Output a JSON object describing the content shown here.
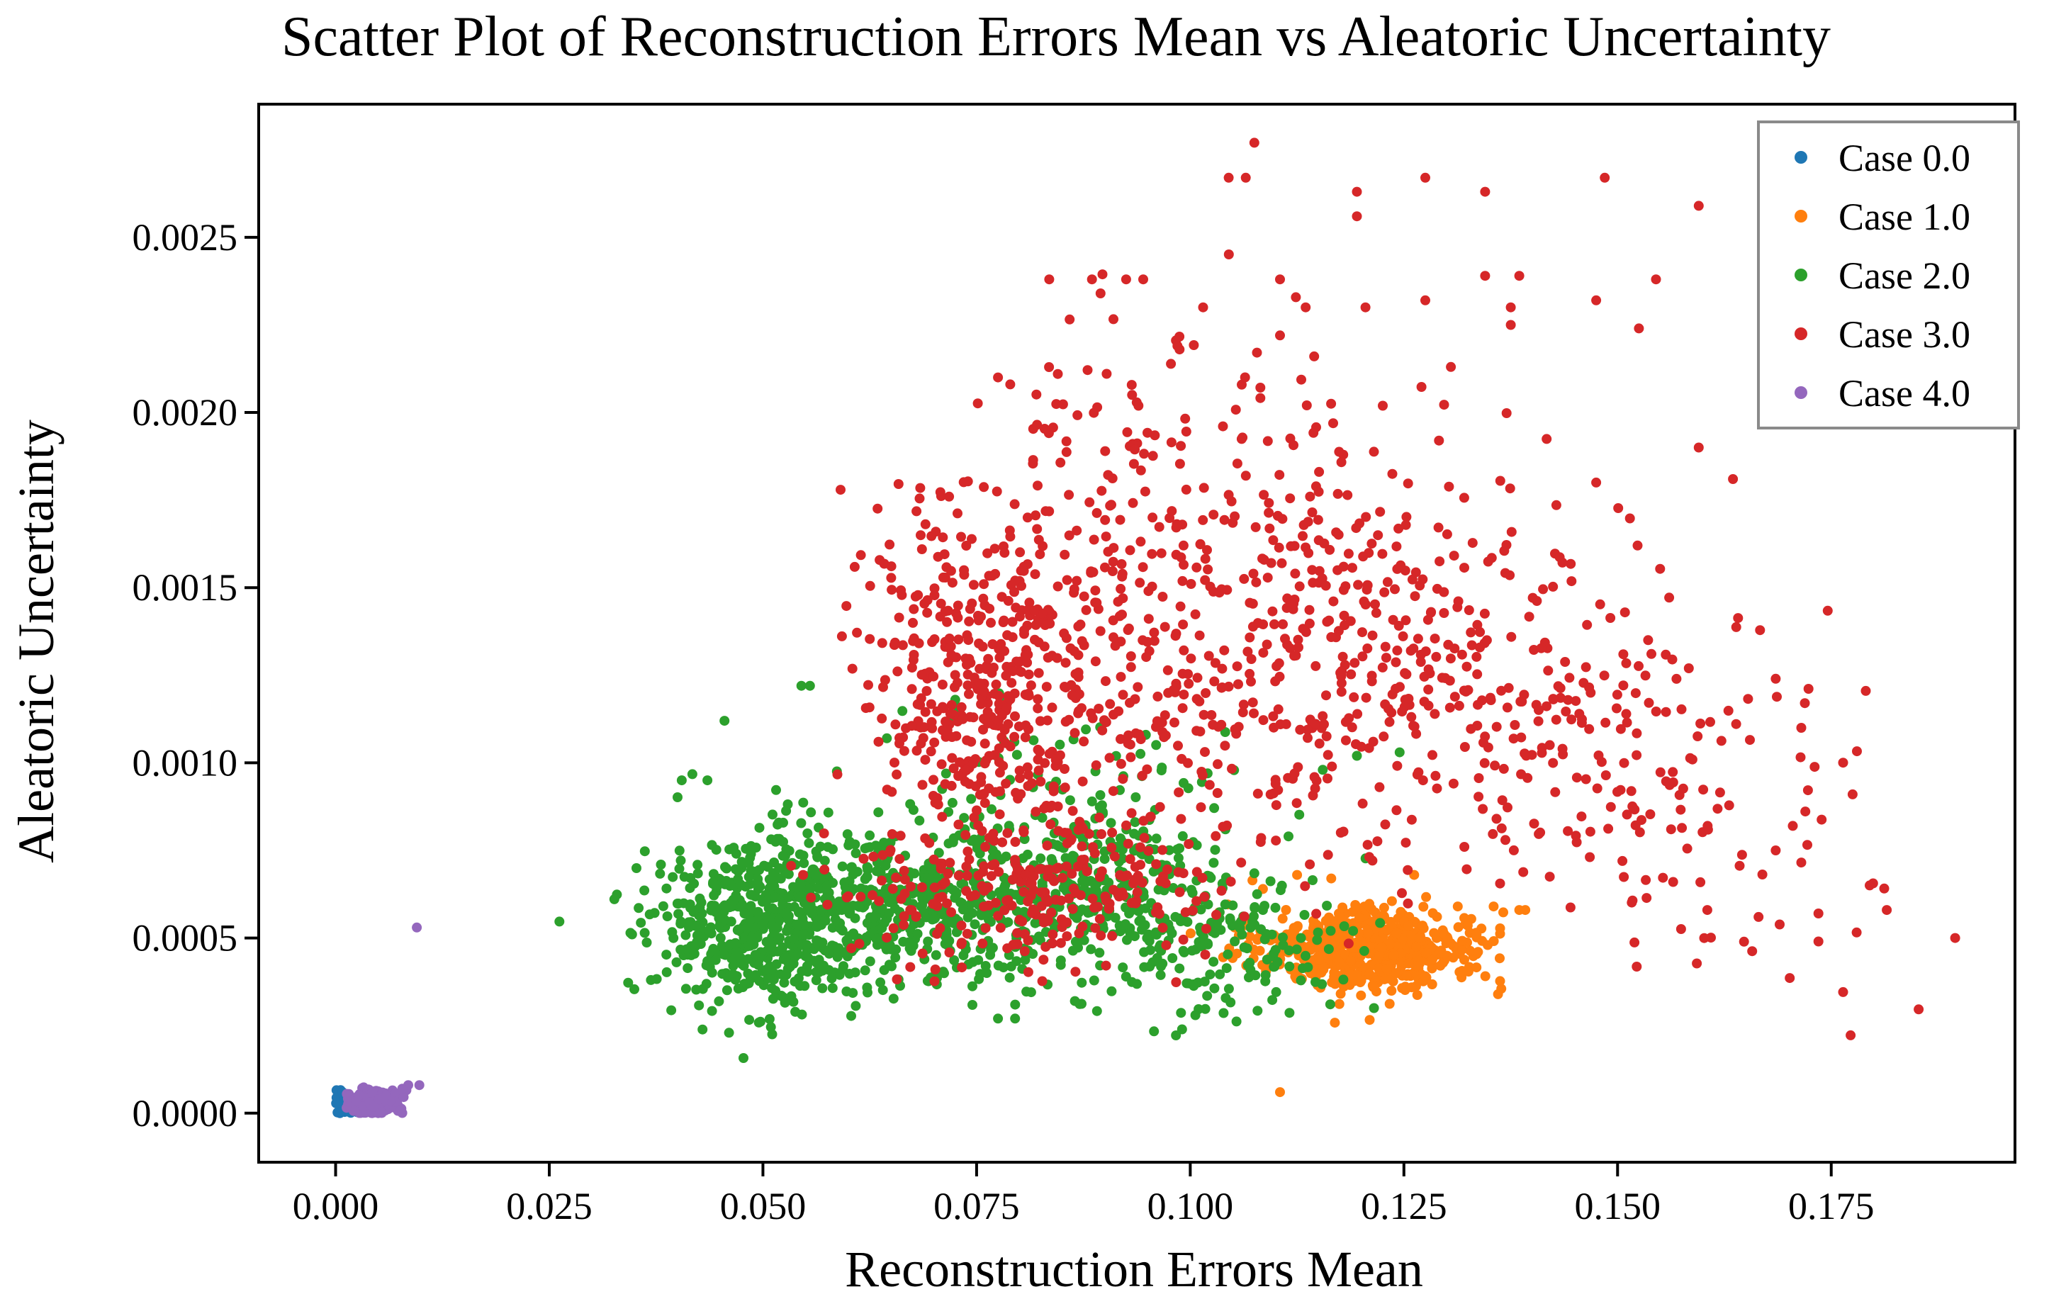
{
  "chart_data": {
    "type": "scatter",
    "title": "Scatter Plot of Reconstruction Errors Mean vs Aleatoric Uncertainty",
    "xlabel": "Reconstruction Errors Mean",
    "ylabel": "Aleatoric Uncertainty",
    "xlim": [
      -0.009,
      0.1965
    ],
    "ylim": [
      -0.00014,
      0.00288
    ],
    "xticks": [
      0.0,
      0.025,
      0.05,
      0.075,
      0.1,
      0.125,
      0.15,
      0.175
    ],
    "xtick_labels": [
      "0.000",
      "0.025",
      "0.050",
      "0.075",
      "0.100",
      "0.125",
      "0.150",
      "0.175"
    ],
    "yticks": [
      0.0,
      0.0005,
      0.001,
      0.0015,
      0.002,
      0.0025
    ],
    "ytick_labels": [
      "0.0000",
      "0.0005",
      "0.0010",
      "0.0015",
      "0.0020",
      "0.0025"
    ],
    "grid": false,
    "legend_position": "top-right",
    "series": [
      {
        "name": "Case 0.0",
        "color": "#1f77b4",
        "clusters": [
          {
            "n": 30,
            "cx": 0.0015,
            "cy": 2e-05,
            "sx": 0.0009,
            "sy": 1.5e-05
          }
        ],
        "points": [
          [
            0.0008,
            6e-05
          ],
          [
            0.0012,
            5e-05
          ],
          [
            0.0005,
            0.0
          ],
          [
            0.0018,
            3e-05
          ]
        ]
      },
      {
        "name": "Case 1.0",
        "color": "#ff7f0e",
        "clusters": [
          {
            "n": 620,
            "cx": 0.1205,
            "cy": 0.00047,
            "sx": 0.0062,
            "sy": 5.5e-05
          }
        ],
        "points": [
          [
            0.1105,
            6e-05
          ],
          [
            0.1385,
            0.00058
          ],
          [
            0.1392,
            0.00058
          ],
          [
            0.1355,
            0.00059
          ],
          [
            0.1125,
            0.00068
          ],
          [
            0.1165,
            0.00067
          ],
          [
            0.1052,
            0.00053
          ],
          [
            0.1313,
            0.00059
          ],
          [
            0.1085,
            0.00064
          ],
          [
            0.1262,
            0.00068
          ],
          [
            0.1335,
            0.00051
          ],
          [
            0.1348,
            0.00048
          ]
        ]
      },
      {
        "name": "Case 2.0",
        "color": "#2ca02c",
        "clusters": [
          {
            "n": 560,
            "cx": 0.05,
            "cy": 0.00055,
            "sx": 0.0065,
            "sy": 0.000125
          },
          {
            "n": 380,
            "cx": 0.067,
            "cy": 0.00057,
            "sx": 0.0075,
            "sy": 0.000115
          },
          {
            "n": 340,
            "cx": 0.088,
            "cy": 0.00063,
            "sx": 0.0085,
            "sy": 0.00012
          },
          {
            "n": 140,
            "cx": 0.105,
            "cy": 0.00048,
            "sx": 0.0075,
            "sy": 0.0001
          },
          {
            "n": 60,
            "cx": 0.083,
            "cy": 0.00092,
            "sx": 0.009,
            "sy": 0.00012
          }
        ],
        "points": [
          [
            0.0545,
            0.00122
          ],
          [
            0.0555,
            0.00122
          ],
          [
            0.0455,
            0.00112
          ],
          [
            0.0435,
            0.00095
          ],
          [
            0.0405,
            0.00095
          ],
          [
            0.0645,
            0.00107
          ],
          [
            0.0725,
            0.00118
          ],
          [
            0.0775,
            0.00027
          ],
          [
            0.0795,
            0.00027
          ],
          [
            0.0865,
            0.00032
          ],
          [
            0.1215,
            0.0003
          ],
          [
            0.1085,
            0.00058
          ],
          [
            0.1155,
            0.00098
          ],
          [
            0.1195,
            0.00102
          ],
          [
            0.1245,
            0.00103
          ],
          [
            0.1115,
            0.00079
          ]
        ]
      },
      {
        "name": "Case 3.0",
        "color": "#d62728",
        "clusters": [
          {
            "n": 380,
            "cx": 0.0755,
            "cy": 0.00118,
            "sx": 0.0065,
            "sy": 0.00026
          },
          {
            "n": 300,
            "cx": 0.094,
            "cy": 0.0013,
            "sx": 0.0105,
            "sy": 0.00032
          },
          {
            "n": 320,
            "cx": 0.12,
            "cy": 0.0013,
            "sx": 0.0115,
            "sy": 0.00028
          },
          {
            "n": 230,
            "cx": 0.08,
            "cy": 0.00063,
            "sx": 0.011,
            "sy": 0.0001
          },
          {
            "n": 150,
            "cx": 0.147,
            "cy": 0.00108,
            "sx": 0.0095,
            "sy": 0.00022
          },
          {
            "n": 130,
            "cx": 0.1,
            "cy": 0.00175,
            "sx": 0.016,
            "sy": 0.00024
          },
          {
            "n": 50,
            "cx": 0.165,
            "cy": 0.0008,
            "sx": 0.0085,
            "sy": 0.00025
          }
        ],
        "points": [
          [
            0.1075,
            0.00277
          ],
          [
            0.1045,
            0.00267
          ],
          [
            0.1065,
            0.00267
          ],
          [
            0.1275,
            0.00267
          ],
          [
            0.1485,
            0.00267
          ],
          [
            0.1195,
            0.00263
          ],
          [
            0.1345,
            0.00263
          ],
          [
            0.1595,
            0.00259
          ],
          [
            0.1195,
            0.00256
          ],
          [
            0.0835,
            0.00238
          ],
          [
            0.0885,
            0.00238
          ],
          [
            0.0925,
            0.00238
          ],
          [
            0.0945,
            0.00238
          ],
          [
            0.1105,
            0.00238
          ],
          [
            0.1345,
            0.00239
          ],
          [
            0.1385,
            0.00239
          ],
          [
            0.1545,
            0.00238
          ],
          [
            0.0895,
            0.00234
          ],
          [
            0.1275,
            0.00232
          ],
          [
            0.1475,
            0.00232
          ],
          [
            0.1015,
            0.0023
          ],
          [
            0.1135,
            0.0023
          ],
          [
            0.1205,
            0.0023
          ],
          [
            0.1375,
            0.0023
          ],
          [
            0.1525,
            0.00224
          ],
          [
            0.1375,
            0.00225
          ],
          [
            0.1105,
            0.00222
          ],
          [
            0.0985,
            0.00219
          ],
          [
            0.1145,
            0.00216
          ],
          [
            0.0845,
            0.00211
          ],
          [
            0.0775,
            0.0021
          ],
          [
            0.1305,
            0.00213
          ],
          [
            0.1595,
            0.0019
          ],
          [
            0.1635,
            0.00181
          ],
          [
            0.1475,
            0.0018
          ],
          [
            0.1895,
            0.0005
          ],
          [
            0.1775,
            0.00091
          ],
          [
            0.1815,
            0.00058
          ],
          [
            0.1795,
            0.00065
          ],
          [
            0.1735,
            0.00049
          ],
          [
            0.1735,
            0.00057
          ],
          [
            0.1685,
            0.00075
          ],
          [
            0.1705,
            0.00082
          ],
          [
            0.1665,
            0.00056
          ],
          [
            0.1565,
            0.00066
          ],
          [
            0.1605,
            0.00058
          ],
          [
            0.1685,
            0.00124
          ],
          [
            0.1715,
            0.0011
          ]
        ]
      },
      {
        "name": "Case 4.0",
        "color": "#9467bd",
        "clusters": [
          {
            "n": 220,
            "cx": 0.0045,
            "cy": 3e-05,
            "sx": 0.0015,
            "sy": 1.8e-05
          }
        ],
        "points": [
          [
            0.0095,
            0.00053
          ],
          [
            0.0098,
            8e-05
          ],
          [
            0.0085,
            8e-05
          ],
          [
            0.0078,
            7e-05
          ]
        ]
      }
    ]
  }
}
